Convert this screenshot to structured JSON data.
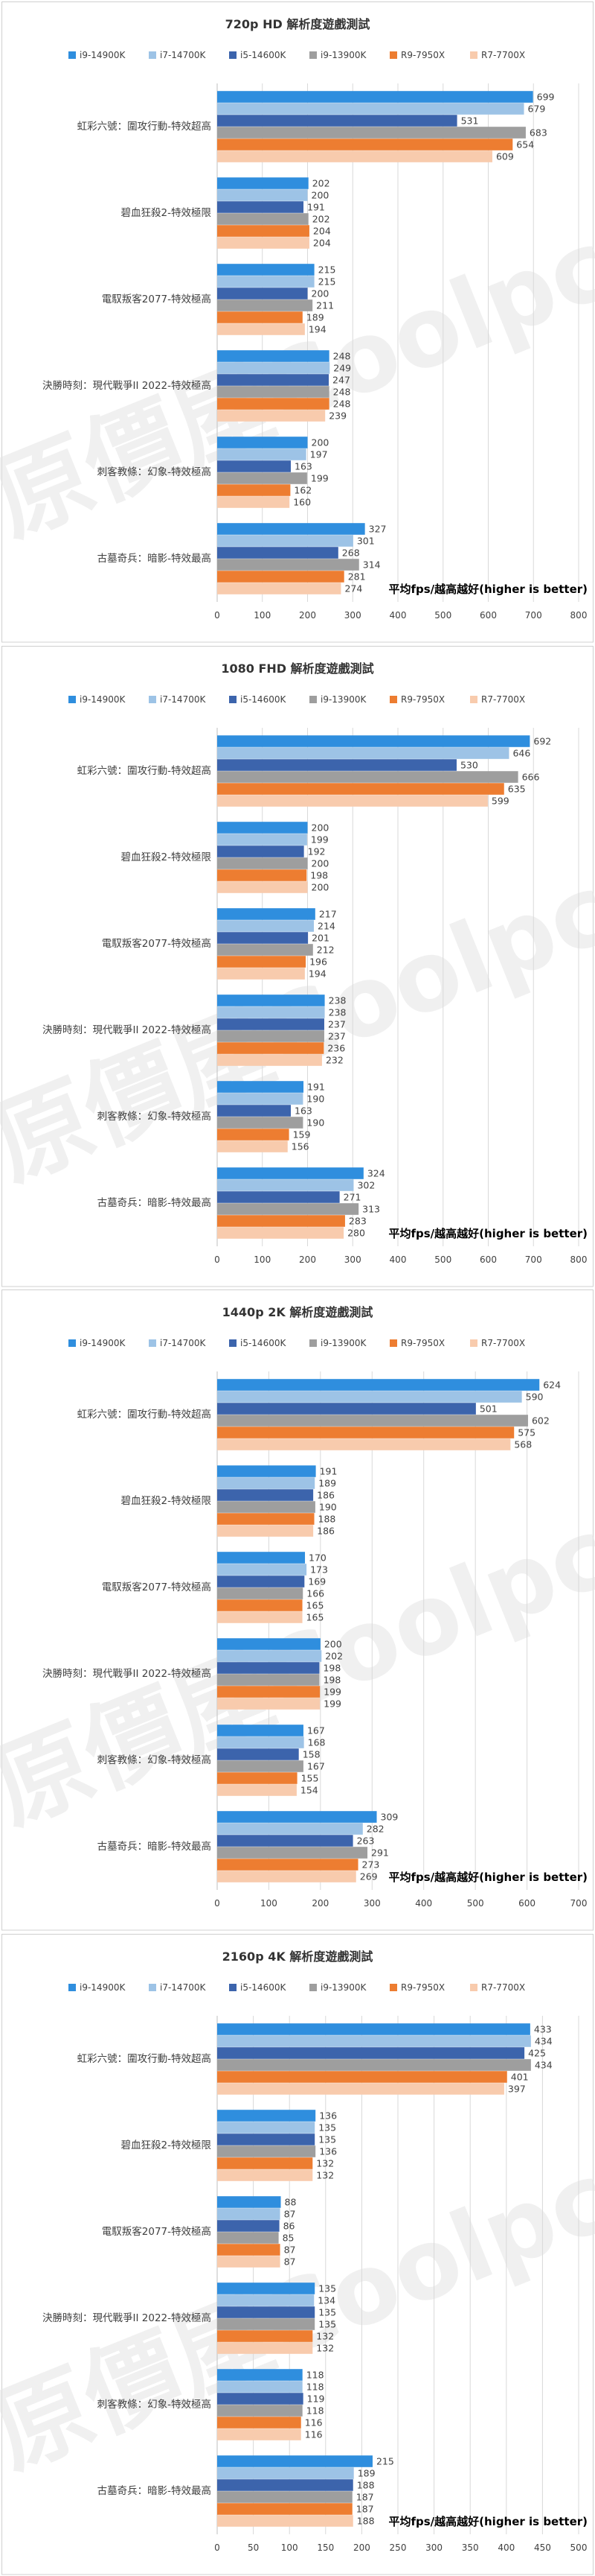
{
  "page": {
    "watermark": "原價屋Coolpc",
    "colors": {
      "background": "#ffffff",
      "border": "#d0d0d0",
      "gridline": "#d9d9d9",
      "text": "#404040",
      "watermark": "#e5e5e5"
    }
  },
  "series_style": [
    {
      "name": "i9-14900K",
      "color": "#2f8ede"
    },
    {
      "name": "i7-14700K",
      "color": "#9dc3e6"
    },
    {
      "name": "i5-14600K",
      "color": "#3c64ac"
    },
    {
      "name": "i9-13900K",
      "color": "#9e9e9e"
    },
    {
      "name": "R9-7950X",
      "color": "#ed7d31"
    },
    {
      "name": "R7-7700X",
      "color": "#f8cbad"
    }
  ],
  "chart_data": [
    {
      "type": "bar",
      "orientation": "horizontal",
      "title": "720p HD 解析度遊戲測試",
      "note": "平均fps/越高越好(higher is better)",
      "categories": [
        "虹彩六號：圍攻行動-特效超高",
        "碧血狂殺2-特效極限",
        "電馭叛客2077-特效極高",
        "決勝時刻：現代戰爭II 2022-特效極高",
        "刺客教條：幻象-特效極高",
        "古墓奇兵：暗影-特效最高"
      ],
      "series": [
        {
          "name": "i9-14900K",
          "values": [
            699,
            202,
            215,
            248,
            200,
            327
          ]
        },
        {
          "name": "i7-14700K",
          "values": [
            679,
            200,
            215,
            249,
            197,
            301
          ]
        },
        {
          "name": "i5-14600K",
          "values": [
            531,
            191,
            200,
            247,
            163,
            268
          ]
        },
        {
          "name": "i9-13900K",
          "values": [
            683,
            202,
            211,
            248,
            199,
            314
          ]
        },
        {
          "name": "R9-7950X",
          "values": [
            654,
            204,
            189,
            248,
            162,
            281
          ]
        },
        {
          "name": "R7-7700X",
          "values": [
            609,
            204,
            194,
            239,
            160,
            274
          ]
        }
      ],
      "xlim": [
        0,
        800
      ],
      "xticks": [
        "0",
        "100",
        "200",
        "300",
        "400",
        "500",
        "600",
        "700",
        "800"
      ],
      "grid": "vertical",
      "legend": "top"
    },
    {
      "type": "bar",
      "orientation": "horizontal",
      "title": "1080 FHD 解析度遊戲測試",
      "note": "平均fps/越高越好(higher is better)",
      "categories": [
        "虹彩六號：圍攻行動-特效超高",
        "碧血狂殺2-特效極限",
        "電馭叛客2077-特效極高",
        "決勝時刻：現代戰爭II 2022-特效極高",
        "刺客教條：幻象-特效極高",
        "古墓奇兵：暗影-特效最高"
      ],
      "series": [
        {
          "name": "i9-14900K",
          "values": [
            692,
            200,
            217,
            238,
            191,
            324
          ]
        },
        {
          "name": "i7-14700K",
          "values": [
            646,
            199,
            214,
            238,
            190,
            302
          ]
        },
        {
          "name": "i5-14600K",
          "values": [
            530,
            192,
            201,
            237,
            163,
            271
          ]
        },
        {
          "name": "i9-13900K",
          "values": [
            666,
            200,
            212,
            237,
            190,
            313
          ]
        },
        {
          "name": "R9-7950X",
          "values": [
            635,
            198,
            196,
            236,
            159,
            283
          ]
        },
        {
          "name": "R7-7700X",
          "values": [
            599,
            200,
            194,
            232,
            156,
            280
          ]
        }
      ],
      "xlim": [
        0,
        800
      ],
      "xticks": [
        "0",
        "100",
        "200",
        "300",
        "400",
        "500",
        "600",
        "700",
        "800"
      ],
      "grid": "vertical",
      "legend": "top"
    },
    {
      "type": "bar",
      "orientation": "horizontal",
      "title": "1440p 2K 解析度遊戲測試",
      "note": "平均fps/越高越好(higher is better)",
      "categories": [
        "虹彩六號：圍攻行動-特效超高",
        "碧血狂殺2-特效極限",
        "電馭叛客2077-特效極高",
        "決勝時刻：現代戰爭II 2022-特效極高",
        "刺客教條：幻象-特效極高",
        "古墓奇兵：暗影-特效最高"
      ],
      "series": [
        {
          "name": "i9-14900K",
          "values": [
            624,
            191,
            170,
            200,
            167,
            309
          ]
        },
        {
          "name": "i7-14700K",
          "values": [
            590,
            189,
            173,
            202,
            168,
            282
          ]
        },
        {
          "name": "i5-14600K",
          "values": [
            501,
            186,
            169,
            198,
            158,
            263
          ]
        },
        {
          "name": "i9-13900K",
          "values": [
            602,
            190,
            166,
            198,
            167,
            291
          ]
        },
        {
          "name": "R9-7950X",
          "values": [
            575,
            188,
            165,
            199,
            155,
            273
          ]
        },
        {
          "name": "R7-7700X",
          "values": [
            568,
            186,
            165,
            199,
            154,
            269
          ]
        }
      ],
      "xlim": [
        0,
        700
      ],
      "xticks": [
        "0",
        "100",
        "200",
        "300",
        "400",
        "500",
        "600",
        "700"
      ],
      "grid": "vertical",
      "legend": "top"
    },
    {
      "type": "bar",
      "orientation": "horizontal",
      "title": "2160p 4K 解析度遊戲測試",
      "note": "平均fps/越高越好(higher is better)",
      "categories": [
        "虹彩六號：圍攻行動-特效超高",
        "碧血狂殺2-特效極限",
        "電馭叛客2077-特效極高",
        "決勝時刻：現代戰爭II 2022-特效極高",
        "刺客教條：幻象-特效極高",
        "古墓奇兵：暗影-特效最高"
      ],
      "series": [
        {
          "name": "i9-14900K",
          "values": [
            433,
            136,
            88,
            135,
            118,
            215
          ]
        },
        {
          "name": "i7-14700K",
          "values": [
            434,
            135,
            87,
            134,
            118,
            189
          ]
        },
        {
          "name": "i5-14600K",
          "values": [
            425,
            135,
            86,
            135,
            119,
            188
          ]
        },
        {
          "name": "i9-13900K",
          "values": [
            434,
            136,
            85,
            135,
            118,
            187
          ]
        },
        {
          "name": "R9-7950X",
          "values": [
            401,
            132,
            87,
            132,
            116,
            187
          ]
        },
        {
          "name": "R7-7700X",
          "values": [
            397,
            132,
            87,
            132,
            116,
            188
          ]
        }
      ],
      "xlim": [
        0,
        500
      ],
      "xticks": [
        "0",
        "50",
        "100",
        "150",
        "200",
        "250",
        "300",
        "350",
        "400",
        "450",
        "500"
      ],
      "grid": "vertical",
      "legend": "top"
    }
  ]
}
